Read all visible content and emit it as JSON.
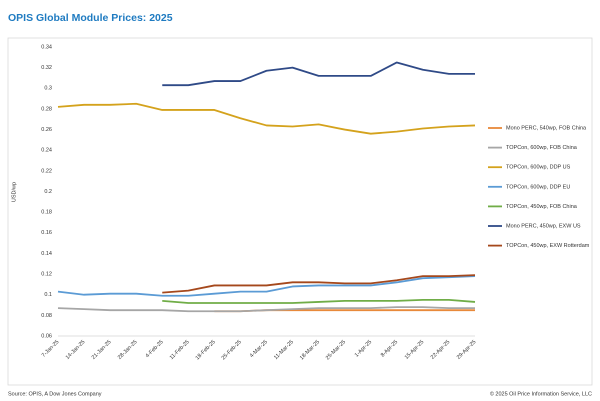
{
  "chart_data": {
    "type": "line",
    "title": "OPIS Global Module Prices: 2025",
    "y_label": "USD/wp",
    "source": "Source: OPIS, A Dow Jones Company",
    "copyright": "© 2025 Oil Price Information Service, LLC",
    "categories": [
      "7-Jan-25",
      "14-Jan-25",
      "21-Jan-25",
      "28-Jan-25",
      "4-Feb-25",
      "11-Feb-25",
      "18-Feb-25",
      "25-Feb-25",
      "4-Mar-25",
      "11-Mar-25",
      "18-Mar-25",
      "25-Mar-25",
      "1-Apr-25",
      "8-Apr-25",
      "15-Apr-25",
      "22-Apr-25",
      "29-Apr-25"
    ],
    "ylim": [
      0.06,
      0.34
    ],
    "yticks": [
      0.06,
      0.08,
      0.1,
      0.12,
      0.14,
      0.16,
      0.18,
      0.2,
      0.22,
      0.24,
      0.26,
      0.28,
      0.3,
      0.32,
      0.34
    ],
    "grid": false,
    "legend_position": "right",
    "series": [
      {
        "name": "Mono PERC, 540wp, FOB China",
        "color": "#e8893a",
        "values": [
          null,
          null,
          null,
          null,
          null,
          null,
          0.084,
          0.084,
          0.085,
          0.085,
          0.085,
          0.085,
          0.085,
          0.085,
          0.085,
          0.085,
          0.085
        ]
      },
      {
        "name": "TOPCon, 600wp, FOB China",
        "color": "#a6a6a6",
        "values": [
          0.087,
          0.086,
          0.085,
          0.085,
          0.085,
          0.084,
          0.084,
          0.084,
          0.085,
          0.086,
          0.087,
          0.087,
          0.087,
          0.088,
          0.088,
          0.087,
          0.087
        ]
      },
      {
        "name": "TOPCon, 600wp, DDP US",
        "color": "#d4a21c",
        "values": [
          0.282,
          0.284,
          0.284,
          0.285,
          0.279,
          0.279,
          0.279,
          0.271,
          0.264,
          0.263,
          0.265,
          0.26,
          0.256,
          0.258,
          0.261,
          0.263,
          0.264
        ]
      },
      {
        "name": "TOPCon, 600wp, DDP EU",
        "color": "#5b9bd5",
        "values": [
          0.103,
          0.1,
          0.101,
          0.101,
          0.099,
          0.099,
          0.101,
          0.103,
          0.103,
          0.108,
          0.109,
          0.109,
          0.109,
          0.112,
          0.116,
          0.117,
          0.118
        ]
      },
      {
        "name": "TOPCon, 450wp, FOB China",
        "color": "#70ad47",
        "values": [
          null,
          null,
          null,
          null,
          0.094,
          0.092,
          0.092,
          0.092,
          0.092,
          0.092,
          0.093,
          0.094,
          0.094,
          0.094,
          0.095,
          0.095,
          0.093
        ]
      },
      {
        "name": "Mono PERC, 450wp, EXW US",
        "color": "#2f4a87",
        "values": [
          null,
          null,
          null,
          null,
          0.303,
          0.303,
          0.307,
          0.307,
          0.317,
          0.32,
          0.312,
          0.312,
          0.312,
          0.325,
          0.318,
          0.314,
          0.314
        ]
      },
      {
        "name": "TOPCon, 450wp, EXW Rotterdam",
        "color": "#a5481c",
        "values": [
          null,
          null,
          null,
          null,
          0.102,
          0.104,
          0.109,
          0.109,
          0.109,
          0.112,
          0.112,
          0.111,
          0.111,
          0.114,
          0.118,
          0.118,
          0.119
        ]
      }
    ]
  }
}
